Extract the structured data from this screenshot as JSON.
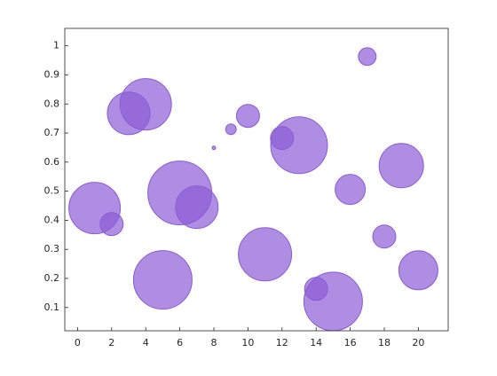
{
  "chart_data": {
    "type": "bubble",
    "x": [
      1,
      2,
      3,
      4,
      5,
      6,
      7,
      8,
      9,
      10,
      11,
      12,
      13,
      14,
      15,
      16,
      17,
      18,
      19,
      20
    ],
    "values": [
      0.442,
      0.387,
      0.768,
      0.799,
      0.195,
      0.494,
      0.445,
      0.649,
      0.713,
      0.759,
      0.283,
      0.683,
      0.658,
      0.164,
      0.121,
      0.506,
      0.963,
      0.344,
      0.588,
      0.228
    ],
    "sizes": [
      29,
      13,
      24,
      29,
      33,
      36,
      24,
      2,
      6,
      13,
      30,
      13,
      32,
      13,
      33,
      17,
      10,
      13,
      25,
      22
    ],
    "color": "#8b5cd6",
    "xlim": [
      -0.75,
      21.75
    ],
    "ylim": [
      0.02,
      1.06
    ],
    "xticks": [
      0,
      2,
      4,
      6,
      8,
      10,
      12,
      14,
      16,
      18,
      20
    ],
    "yticks": [
      0.1,
      0.2,
      0.3,
      0.4,
      0.5,
      0.6,
      0.7,
      0.8,
      0.9,
      1
    ]
  }
}
